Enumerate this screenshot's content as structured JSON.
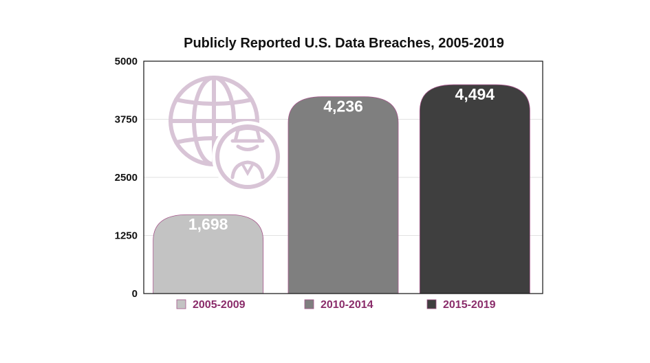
{
  "chart_data": {
    "type": "bar",
    "title": "Publicly Reported U.S. Data Breaches, 2005-2019",
    "categories": [
      "2005-2009",
      "2010-2014",
      "2015-2019"
    ],
    "values": [
      1698,
      4236,
      4494
    ],
    "data_labels": [
      "1,698",
      "4,236",
      "4,494"
    ],
    "yticks": [
      "0",
      "1250",
      "2500",
      "3750",
      "5000"
    ],
    "ylim": [
      0,
      5000
    ],
    "xlabel": "",
    "ylabel": "",
    "grid": true,
    "legend_position": "bottom",
    "colors": [
      "#c3c3c3",
      "#7f7f7f",
      "#3f3f3f"
    ],
    "bar_edge_color": "#a5548a",
    "legend_text_color": "#8a2c6a",
    "icon": "globe-spy-icon",
    "icon_color": "#d8c4d6"
  }
}
